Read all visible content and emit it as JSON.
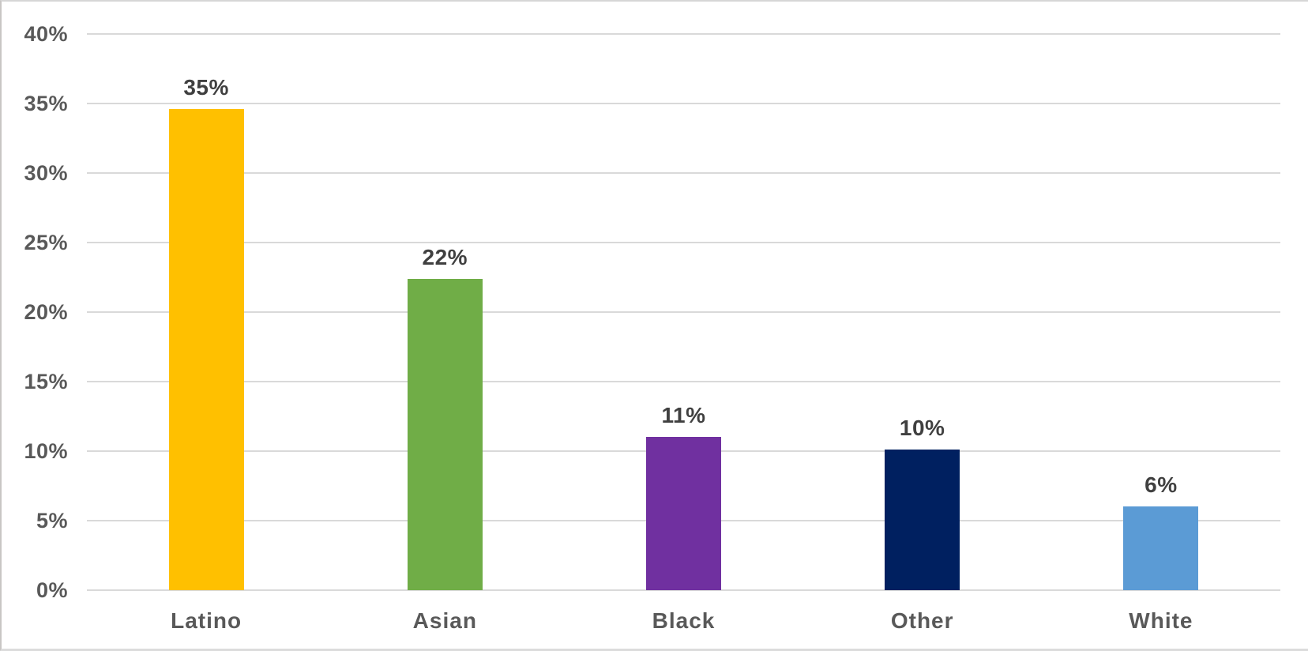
{
  "chart_data": {
    "type": "bar",
    "title": "",
    "xlabel": "",
    "ylabel": "",
    "categories": [
      "Latino",
      "Asian",
      "Black",
      "Other",
      "White"
    ],
    "values": [
      35,
      22,
      11,
      10,
      6
    ],
    "data_labels": [
      "35%",
      "22%",
      "11%",
      "10%",
      "6%"
    ],
    "bar_heights_pct": [
      34.6,
      22.4,
      11.0,
      10.1,
      6.0
    ],
    "bar_colors": [
      "#FFC000",
      "#70AD47",
      "#7030A0",
      "#002060",
      "#5B9BD5"
    ],
    "ylim": [
      0,
      40
    ],
    "yticks": [
      0,
      5,
      10,
      15,
      20,
      25,
      30,
      35,
      40
    ],
    "ytick_labels": [
      "0%",
      "5%",
      "10%",
      "15%",
      "20%",
      "25%",
      "30%",
      "35%",
      "40%"
    ],
    "grid": "horizontal",
    "legend": "none",
    "colors": {
      "gridline": "#D9D9D9",
      "axis_label": "#595959",
      "data_label": "#404040",
      "background": "#FFFFFF",
      "frame_border": "#D6D6D6"
    }
  }
}
